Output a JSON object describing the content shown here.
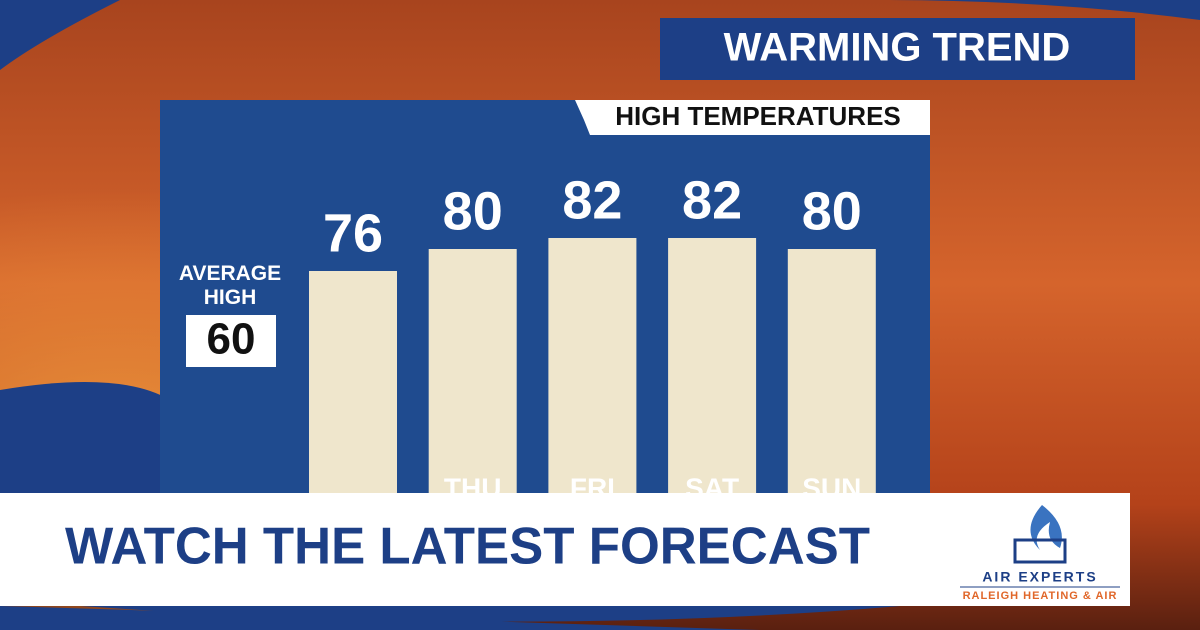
{
  "badge": "WARMING TREND",
  "chart_data": {
    "type": "bar",
    "title": "HIGH TEMPERATURES",
    "categories": [
      null,
      "THU",
      "FRI",
      "SAT",
      "SUN"
    ],
    "values": [
      76,
      80,
      82,
      82,
      80
    ],
    "color": "#efe6cc",
    "average_high": {
      "label": "AVERAGE HIGH",
      "value": 60
    }
  },
  "banner": {
    "text": "WATCH THE LATEST FORECAST"
  },
  "sponsor": {
    "name": "AIR EXPERTS",
    "tagline": "RALEIGH HEATING & AIR"
  }
}
